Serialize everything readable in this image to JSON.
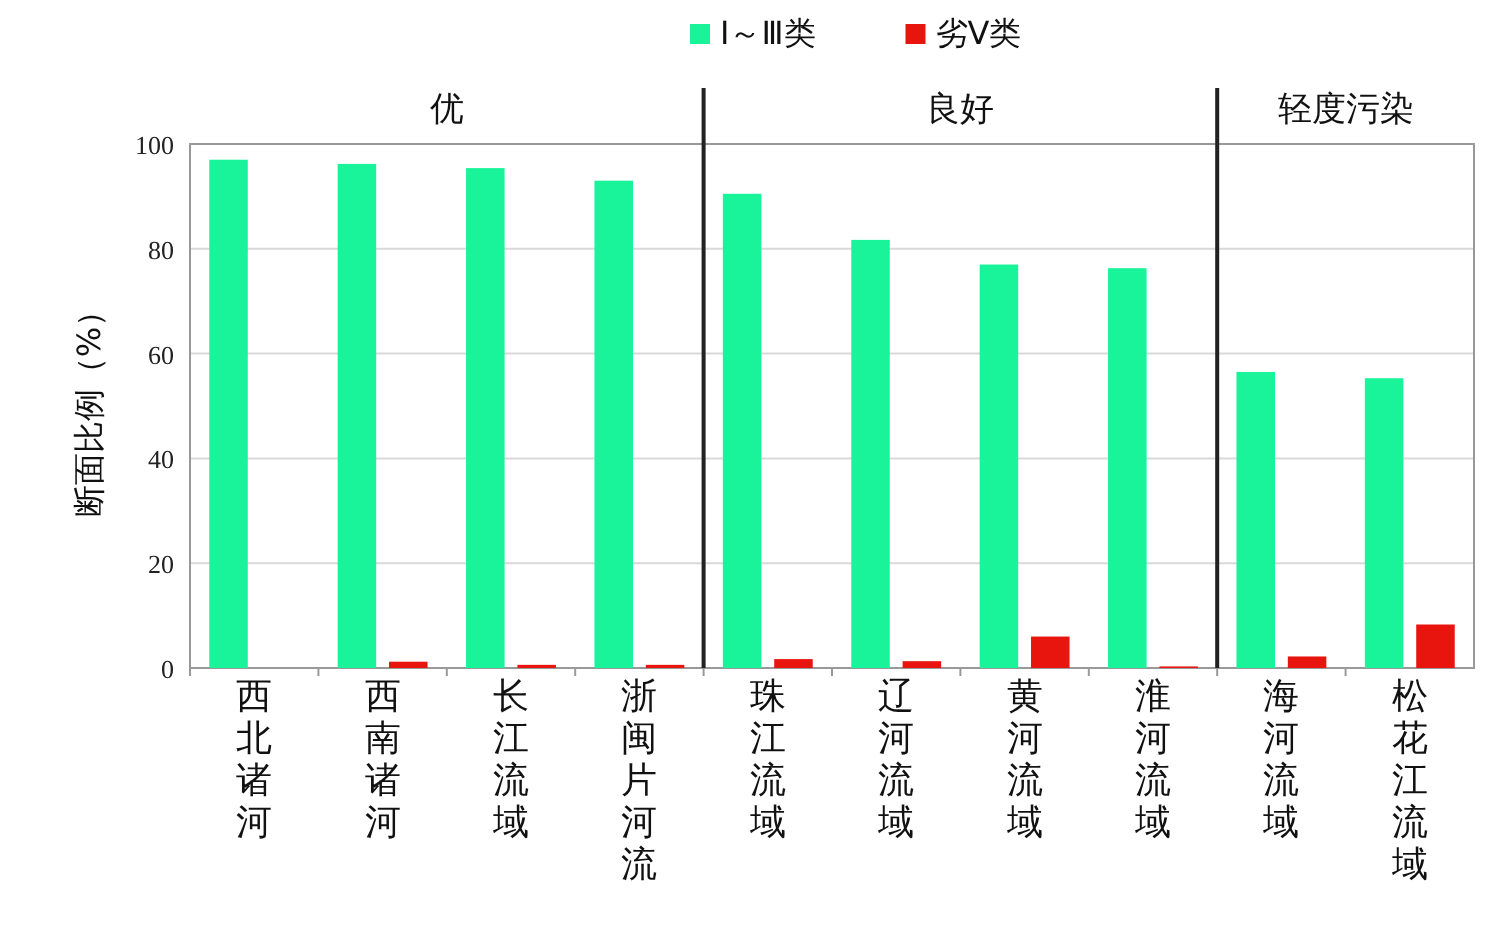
{
  "chart_data": {
    "type": "bar",
    "ylabel": "断面比例（%）",
    "categories": [
      "西北诸河",
      "西南诸河",
      "长江流域",
      "浙闽片河流",
      "珠江流域",
      "辽河流域",
      "黄河流域",
      "淮河流域",
      "海河流域",
      "松花江流域"
    ],
    "series": [
      {
        "name": "Ⅰ～Ⅲ类",
        "color": "#19f49a",
        "values": [
          97,
          96.2,
          95.4,
          93,
          90.5,
          81.7,
          77,
          76.3,
          56.5,
          55.3
        ]
      },
      {
        "name": "劣Ⅴ类",
        "color": "#e8150f",
        "values": [
          0,
          1.2,
          0.6,
          0.6,
          1.7,
          1.3,
          6,
          0.3,
          2.2,
          8.3
        ]
      }
    ],
    "annotations": [
      "优",
      "良好",
      "轻度污染"
    ],
    "ylim": [
      0,
      100
    ],
    "yticks": [
      0,
      20,
      40,
      60,
      80,
      100
    ],
    "grid": "y",
    "legend": "top"
  }
}
